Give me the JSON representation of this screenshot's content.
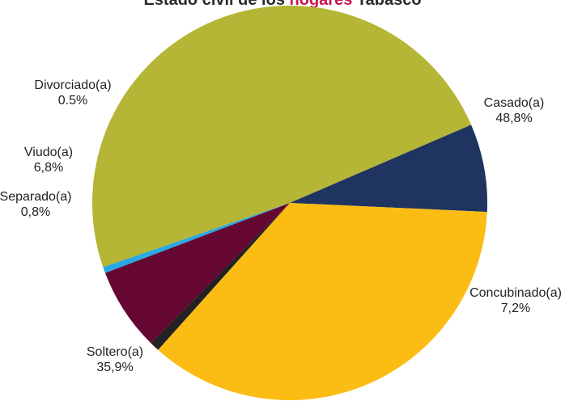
{
  "chart_data": {
    "type": "pie",
    "title_parts": [
      {
        "text": "Estado civil de los",
        "color": "#2b2b2b"
      },
      {
        "text": "hogares",
        "color": "#c8174f"
      },
      {
        "text": "Tabasco",
        "color": "#2b2b2b"
      }
    ],
    "start_angle_deg": 161,
    "direction": "clockwise",
    "slices": [
      {
        "name": "Casado(a)",
        "value_label": "48,8%",
        "value": 48.8,
        "color": "#b5b536"
      },
      {
        "name": "Concubinado(a)",
        "value_label": "7,2%",
        "value": 7.2,
        "color": "#1f3461"
      },
      {
        "name": "Soltero(a)",
        "value_label": "35,9%",
        "value": 35.9,
        "color": "#fbbc13"
      },
      {
        "name": "Separado(a)",
        "value_label": "0,8%",
        "value": 0.8,
        "color": "#222222"
      },
      {
        "name": "Viudo(a)",
        "value_label": "6,8%",
        "value": 6.8,
        "color": "#660733"
      },
      {
        "name": "Divorciado(a)",
        "value_label": "0.5%",
        "value": 0.5,
        "color": "#29a9e1"
      }
    ]
  }
}
